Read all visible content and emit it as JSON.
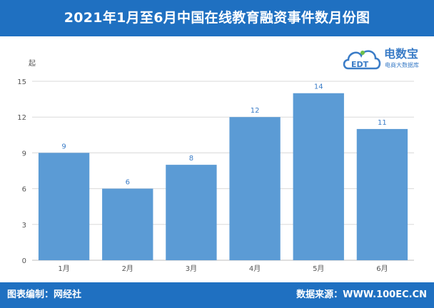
{
  "header": {
    "title": "2021年1月至6月中国在线教育融资事件数月份图"
  },
  "footer": {
    "left": "图表编制：网经社",
    "right": "数据来源：WWW.100EC.CN"
  },
  "logo": {
    "name": "电数宝",
    "tagline": "电商大数据库",
    "mark_text": "EDT"
  },
  "chart_data": {
    "type": "bar",
    "title": "2021年1月至6月中国在线教育融资事件数月份图",
    "ylabel": "起",
    "xlabel": "",
    "categories": [
      "1月",
      "2月",
      "3月",
      "4月",
      "5月",
      "6月"
    ],
    "values": [
      9,
      6,
      8,
      12,
      14,
      11
    ],
    "ylim": [
      0,
      15
    ],
    "yticks": [
      0,
      3,
      6,
      9,
      12,
      15
    ],
    "grid": true,
    "bar_color": "#5b9bd5",
    "label_color": "#3a7cc7"
  },
  "colors": {
    "header_bg": "#1f70c1",
    "bar": "#5b9bd5",
    "grid": "#d9d9d9"
  }
}
